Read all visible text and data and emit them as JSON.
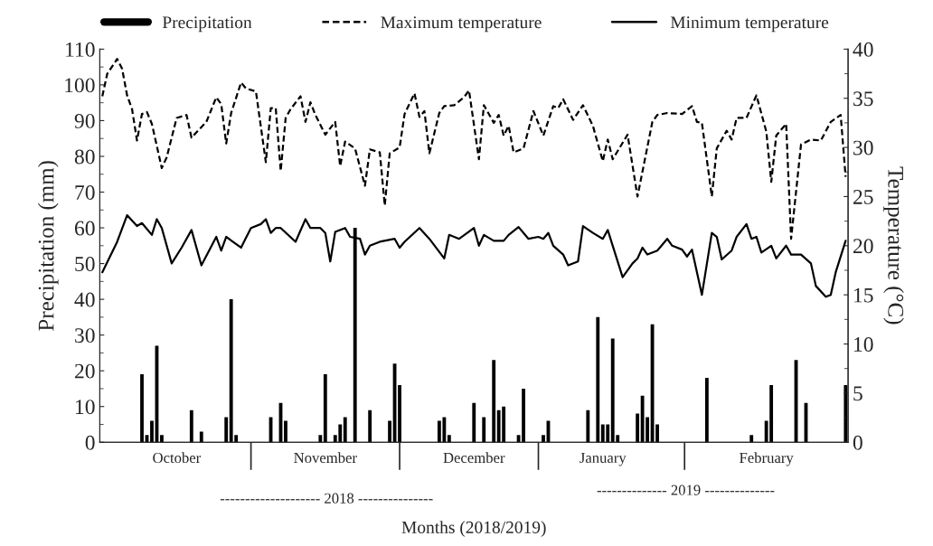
{
  "chart_data": {
    "type": "line",
    "xlabel": "Months (2018/2019)",
    "ylabel": "Precipitation (mm)",
    "y2label": "Temperature (°C)",
    "annotations": [
      "-------------------- 2018 ---------------",
      "-------------- 2019 --------------"
    ],
    "categories": [
      null,
      null,
      null,
      null,
      null,
      null,
      null,
      null,
      null,
      null,
      null,
      null,
      null,
      null,
      null,
      "October",
      null,
      null,
      null,
      null,
      null,
      null,
      null,
      null,
      null,
      null,
      null,
      null,
      null,
      null,
      null,
      null,
      null,
      null,
      null,
      null,
      null,
      null,
      null,
      null,
      null,
      null,
      null,
      null,
      null,
      "November",
      null,
      null,
      null,
      null,
      null,
      null,
      null,
      null,
      null,
      null,
      null,
      null,
      null,
      null,
      null,
      null,
      null,
      null,
      null,
      null,
      null,
      null,
      null,
      null,
      null,
      null,
      null,
      null,
      null,
      "December",
      null,
      null,
      null,
      null,
      null,
      null,
      null,
      null,
      null,
      null,
      null,
      null,
      null,
      null,
      null,
      null,
      null,
      null,
      null,
      null,
      null,
      null,
      null,
      null,
      null,
      "January",
      null,
      null,
      null,
      null,
      null,
      null,
      null,
      null,
      null,
      null,
      null,
      null,
      null,
      null,
      null,
      null,
      null,
      null,
      null,
      null,
      null,
      null,
      null,
      null,
      null,
      null,
      null,
      null,
      null,
      null,
      null,
      null,
      "February",
      null,
      null,
      null,
      null,
      null,
      null,
      null,
      null,
      null,
      null,
      null,
      null,
      null,
      null,
      null,
      null
    ],
    "ylim": [
      0,
      110
    ],
    "yticks": [
      0,
      {
        "value": 5,
        "label": null
      },
      10,
      {
        "value": 15,
        "label": null
      },
      20,
      {
        "value": 25,
        "label": null
      },
      30,
      {
        "value": 35,
        "label": null
      },
      40,
      {
        "value": 45,
        "label": null
      },
      50,
      {
        "value": 55,
        "label": null
      },
      60,
      {
        "value": 65,
        "label": null
      },
      70,
      {
        "value": 75,
        "label": null
      },
      80,
      {
        "value": 85,
        "label": null
      },
      90,
      {
        "value": 95,
        "label": null
      },
      100,
      {
        "value": 105,
        "label": null
      },
      110
    ],
    "y2lim": [
      0,
      40
    ],
    "y2ticks": [
      0,
      {
        "value": 2.5,
        "label": null
      },
      5,
      {
        "value": 7.5,
        "label": null
      },
      10,
      {
        "value": 12.5,
        "label": null
      },
      15,
      {
        "value": 17.5,
        "label": null
      },
      20,
      {
        "value": 22.5,
        "label": null
      },
      25,
      {
        "value": 27.5,
        "label": null
      },
      30,
      {
        "value": 32.5,
        "label": null
      },
      35,
      {
        "value": 37.5,
        "label": null
      },
      40
    ],
    "legend": "top",
    "series": [
      {
        "name": "Precipitation",
        "type": "bar",
        "axis": "y",
        "color": "#000000",
        "values": [
          0,
          0,
          0,
          0,
          0,
          0,
          0,
          0,
          19,
          2,
          6,
          27,
          2,
          0,
          0,
          0,
          0,
          0,
          9,
          0,
          3,
          0,
          0,
          0,
          0,
          7,
          40,
          2,
          0,
          0,
          0,
          0,
          0,
          0,
          7,
          0,
          11,
          6,
          0,
          0,
          0,
          0,
          0,
          0,
          2,
          19,
          0,
          2,
          5,
          7,
          0,
          60,
          0,
          0,
          9,
          0,
          0,
          0,
          6,
          22,
          16,
          0,
          0,
          0,
          0,
          0,
          0,
          0,
          6,
          7,
          2,
          0,
          0,
          0,
          0,
          11,
          0,
          7,
          0,
          23,
          9,
          10,
          0,
          0,
          2,
          15,
          0,
          0,
          0,
          2,
          6,
          0,
          0,
          0,
          0,
          0,
          0,
          0,
          9,
          0,
          35,
          5,
          5,
          29,
          2,
          0,
          0,
          0,
          8,
          13,
          7,
          33,
          5,
          0,
          0,
          0,
          0,
          0,
          0,
          0,
          0,
          0,
          18,
          0,
          0,
          0,
          0,
          0,
          0,
          0,
          0,
          2,
          0,
          0,
          6,
          16,
          0,
          0,
          0,
          0,
          23,
          0,
          11,
          0,
          0,
          0,
          0,
          0,
          0,
          0,
          16
        ]
      },
      {
        "name": "Maximum temperature",
        "axis": "y2",
        "line_style": "dashed",
        "color": "#000000",
        "values": [
          35.2,
          37.5,
          null,
          39.0,
          38.0,
          35.3,
          33.9,
          30.7,
          33.4,
          33.6,
          32.4,
          null,
          27.9,
          29.0,
          null,
          33.0,
          null,
          33.3,
          31.0,
          null,
          null,
          32.6,
          null,
          35.1,
          34.4,
          30.4,
          33.5,
          null,
          36.6,
          36.0,
          null,
          35.7,
          null,
          28.5,
          34.0,
          34.0,
          27.6,
          33.0,
          33.9,
          null,
          35.2,
          32.6,
          34.6,
          33.3,
          null,
          31.3,
          null,
          32.6,
          28.1,
          30.6,
          null,
          29.9,
          null,
          26.1,
          29.8,
          null,
          29.5,
          24.1,
          29.4,
          null,
          30.0,
          33.4,
          null,
          35.5,
          33.1,
          33.7,
          29.4,
          null,
          33.5,
          34.2,
          null,
          34.3,
          null,
          35.1,
          35.8,
          null,
          28.8,
          34.3,
          null,
          32.5,
          33.3,
          31.2,
          32.2,
          29.5,
          null,
          29.9,
          null,
          33.7,
          null,
          31.2,
          null,
          34.2,
          34.0,
          34.9,
          null,
          32.8,
          null,
          34.3,
          null,
          32.2,
          null,
          28.6,
          30.8,
          28.8,
          null,
          null,
          31.3,
          null,
          25.0,
          null,
          null,
          32.6,
          33.3,
          null,
          33.5,
          null,
          null,
          33.4,
          null,
          34.2,
          32.6,
          32.5,
          null,
          25.0,
          29.9,
          null,
          31.7,
          30.8,
          33.0,
          null,
          33.0,
          null,
          35.3,
          null,
          31.6,
          26.5,
          31.2,
          null,
          32.4,
          20.7,
          null,
          30.3,
          null,
          30.8,
          null,
          30.7,
          null,
          32.6,
          null,
          33.3,
          27.0
        ]
      },
      {
        "name": "Minimum temperature",
        "axis": "y2",
        "line_style": "solid",
        "color": "#000000",
        "values": [
          17.3,
          null,
          null,
          20.4,
          null,
          23.1,
          null,
          22.0,
          22.3,
          null,
          21.1,
          22.7,
          21.8,
          null,
          18.2,
          null,
          19.8,
          null,
          21.6,
          null,
          18.0,
          null,
          null,
          20.9,
          19.5,
          20.9,
          null,
          null,
          19.8,
          20.8,
          21.8,
          null,
          22.2,
          22.7,
          21.3,
          21.8,
          21.8,
          null,
          null,
          20.4,
          null,
          22.7,
          21.8,
          null,
          21.8,
          21.3,
          18.4,
          21.4,
          null,
          21.8,
          20.9,
          null,
          20.7,
          19.1,
          20.0,
          null,
          20.4,
          null,
          null,
          20.7,
          19.8,
          20.4,
          null,
          null,
          21.8,
          null,
          20.7,
          null,
          null,
          18.7,
          21.1,
          null,
          20.7,
          null,
          null,
          21.8,
          20.0,
          21.1,
          null,
          20.5,
          null,
          20.5,
          21.1,
          null,
          21.9,
          null,
          20.7,
          null,
          20.9,
          20.7,
          21.3,
          20.0,
          null,
          19.1,
          18.0,
          null,
          18.4,
          22.0,
          null,
          21.3,
          null,
          20.7,
          21.6,
          20.0,
          null,
          16.8,
          null,
          18.2,
          18.7,
          19.8,
          19.1,
          null,
          19.5,
          null,
          20.7,
          20.0,
          null,
          19.6,
          18.9,
          19.6,
          null,
          15.0,
          null,
          21.3,
          20.9,
          18.6,
          null,
          19.5,
          20.9,
          null,
          22.2,
          20.7,
          20.9,
          19.3,
          null,
          20.0,
          18.7,
          null,
          20.0,
          19.1,
          null,
          19.1,
          null,
          18.2,
          15.9,
          null,
          14.8,
          15.0,
          17.3,
          null,
          20.5
        ]
      }
    ]
  }
}
